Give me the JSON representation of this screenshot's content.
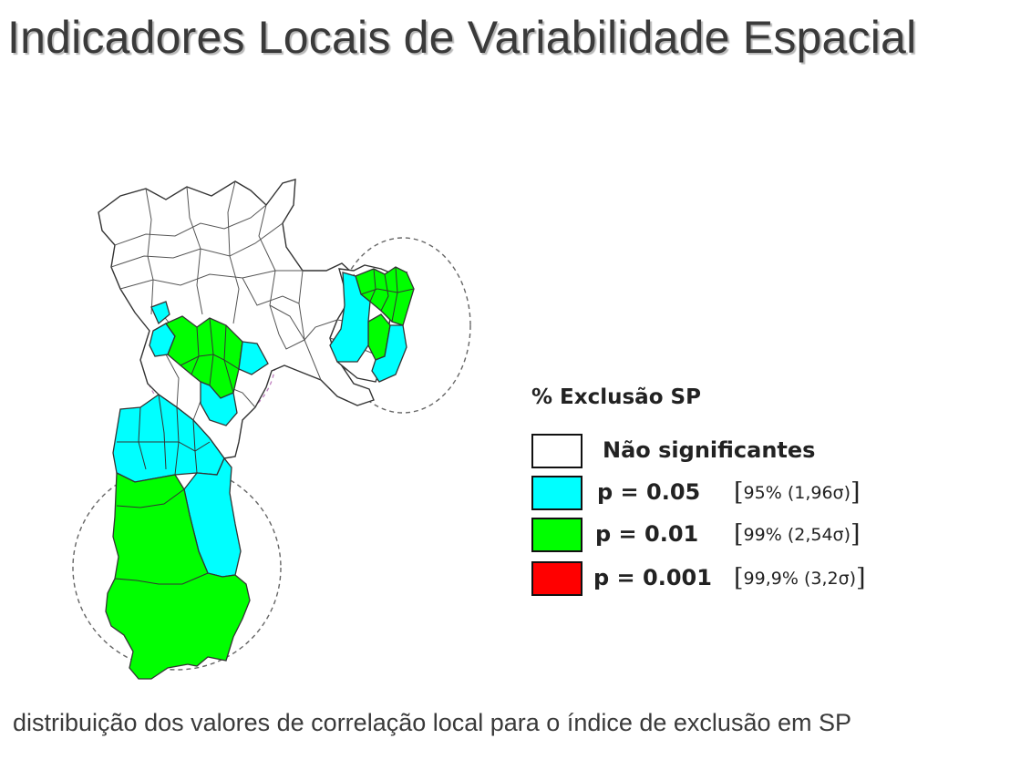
{
  "title": "Indicadores Locais de Variabilidade Espacial",
  "legend": {
    "title": "% Exclusão SP",
    "items": [
      {
        "label": "Não significantes",
        "confidence": "",
        "color": "#ffffff"
      },
      {
        "label": "p = 0.05",
        "confidence": "95% (1,96σ)",
        "color": "#00ffff"
      },
      {
        "label": "p = 0.01",
        "confidence": "99% (2,54σ)",
        "color": "#00ff00"
      },
      {
        "label": "p = 0.001",
        "confidence": "99,9% (3,2σ)",
        "color": "#ff0000"
      }
    ]
  },
  "caption": "distribuição dos valores de correlação local para o índice de exclusão em SP",
  "colors": {
    "not_significant": "#ffffff",
    "p05": "#00ffff",
    "p01": "#00ff00",
    "p001": "#ff0000",
    "outline": "#333333",
    "cluster_circle": "#555555"
  }
}
